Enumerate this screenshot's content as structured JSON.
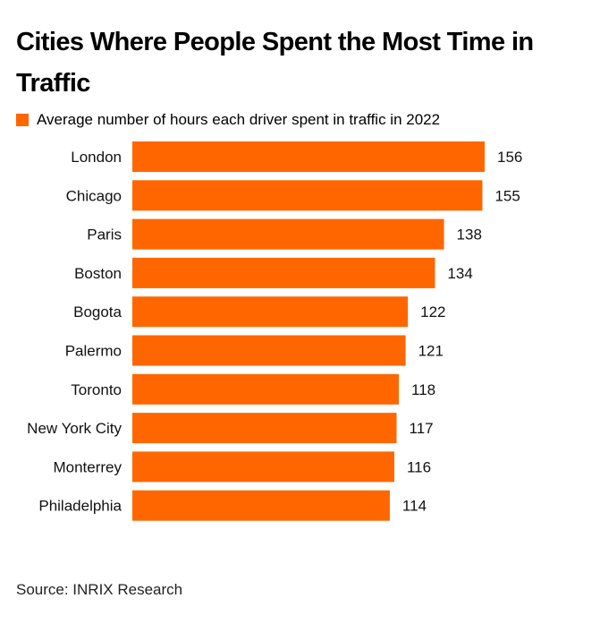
{
  "title": "Cities Where People Spent the Most Time in Traffic",
  "source": "Source: INRIX Research",
  "colors": {
    "bar": "#ff6600"
  },
  "chart_data": {
    "type": "bar",
    "orientation": "horizontal",
    "categories": [
      "London",
      "Chicago",
      "Paris",
      "Boston",
      "Bogota",
      "Palermo",
      "Toronto",
      "New York City",
      "Monterrey",
      "Philadelphia"
    ],
    "series": [
      {
        "name": "Average number of hours each driver spent in traffic in 2022",
        "values": [
          156,
          155,
          138,
          134,
          122,
          121,
          118,
          117,
          116,
          114
        ]
      }
    ],
    "data_labels": true,
    "grid": false,
    "legend": "top-left",
    "xlim": [
      0,
      156
    ]
  }
}
